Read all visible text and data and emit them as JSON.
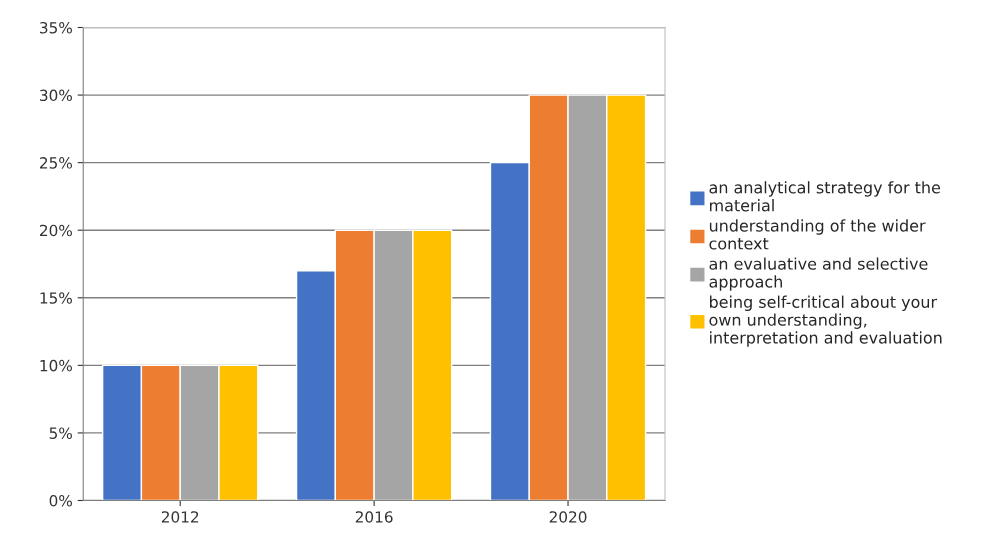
{
  "chart_data": {
    "type": "bar",
    "categories": [
      "2012",
      "2016",
      "2020"
    ],
    "series": [
      {
        "name": "an analytical strategy for the material",
        "color": "#4472c4",
        "values": [
          10,
          17,
          25
        ]
      },
      {
        "name": "understanding of the wider context",
        "color": "#ed7d31",
        "values": [
          10,
          20,
          30
        ]
      },
      {
        "name": "an evaluative and selective approach",
        "color": "#a5a5a5",
        "values": [
          10,
          20,
          30
        ]
      },
      {
        "name": "being self-critical about your own understanding, interpretation and evaluation",
        "color": "#ffc000",
        "values": [
          10,
          20,
          30
        ]
      }
    ],
    "ylim": [
      0,
      35
    ],
    "yticks": [
      {
        "value": 0,
        "label": "0%"
      },
      {
        "value": 5,
        "label": "5%"
      },
      {
        "value": 10,
        "label": "10%"
      },
      {
        "value": 15,
        "label": "15%"
      },
      {
        "value": 20,
        "label": "20%"
      },
      {
        "value": 25,
        "label": "25%"
      },
      {
        "value": 30,
        "label": "30%"
      },
      {
        "value": 35,
        "label": "35%"
      }
    ],
    "grid": "y",
    "legend": "right"
  }
}
